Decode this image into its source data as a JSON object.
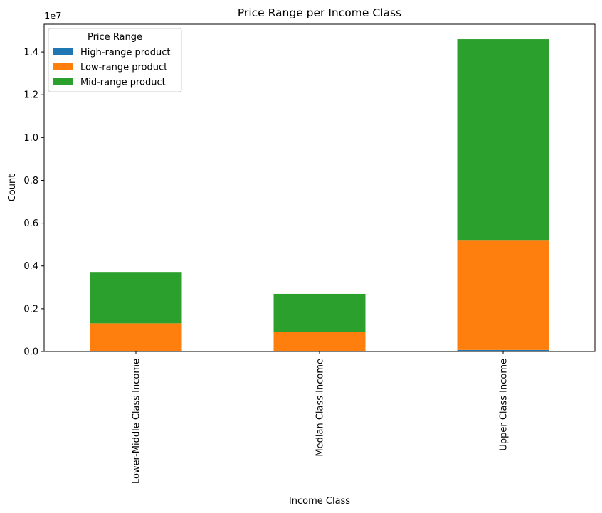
{
  "chart_data": {
    "type": "bar",
    "stacked": true,
    "title": "Price Range per Income Class",
    "xlabel": "Income Class",
    "ylabel": "Count",
    "offset_text": "1e7",
    "categories": [
      "Lower-Middle Class Income",
      "Median Class Income",
      "Upper Class Income"
    ],
    "series": [
      {
        "name": "High-range product",
        "color": "#1f77b4",
        "values": [
          9000,
          6000,
          70000
        ]
      },
      {
        "name": "Low-range product",
        "color": "#ff7f0e",
        "values": [
          1310000,
          920000,
          5110000
        ]
      },
      {
        "name": "Mid-range product",
        "color": "#2ca02c",
        "values": [
          2400000,
          1770000,
          9420000
        ]
      }
    ],
    "ylim": [
      0,
      15300000
    ],
    "yticks": [
      0,
      2000000,
      4000000,
      6000000,
      8000000,
      10000000,
      12000000,
      14000000
    ],
    "ytick_labels": [
      "0.0",
      "0.2",
      "0.4",
      "0.6",
      "0.8",
      "1.0",
      "1.2",
      "1.4"
    ],
    "legend": {
      "title": "Price Range",
      "position": "top-left"
    },
    "grid": false
  }
}
